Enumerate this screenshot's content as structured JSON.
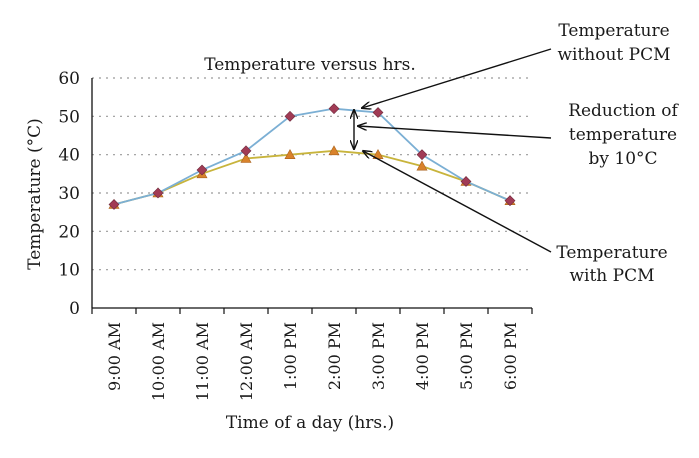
{
  "chart_data": {
    "type": "line",
    "title": "Temperature versus hrs.",
    "xlabel": "Time of a day (hrs.)",
    "ylabel": "Temperature (°C)",
    "categories": [
      "9:00 AM",
      "10:00 AM",
      "11:00 AM",
      "12:00 AM",
      "1:00 PM",
      "2:00 PM",
      "3:00 PM",
      "4:00 PM",
      "5:00 PM",
      "6:00 PM"
    ],
    "ylim": [
      0,
      60
    ],
    "yticks": [
      "0",
      "10",
      "20",
      "30",
      "40",
      "50",
      "60"
    ],
    "grid": true,
    "series": [
      {
        "name": "Temperature without PCM",
        "color": "#7bafd4",
        "marker_color": "#a13b55",
        "marker": "diamond",
        "values": [
          27,
          30,
          36,
          41,
          50,
          52,
          51,
          40,
          33,
          28
        ]
      },
      {
        "name": "Temperature with PCM",
        "color": "#c8b43c",
        "marker_color": "#d9822b",
        "marker": "triangle",
        "values": [
          27,
          30,
          35,
          39,
          40,
          41,
          40,
          37,
          33,
          28
        ]
      }
    ],
    "annotations": [
      {
        "line1": "Temperature",
        "line2": "without PCM"
      },
      {
        "line1": "Reduction of",
        "line2": "temperature",
        "line3": "by 10°C"
      },
      {
        "line1": "Temperature",
        "line2": "with PCM"
      }
    ]
  }
}
